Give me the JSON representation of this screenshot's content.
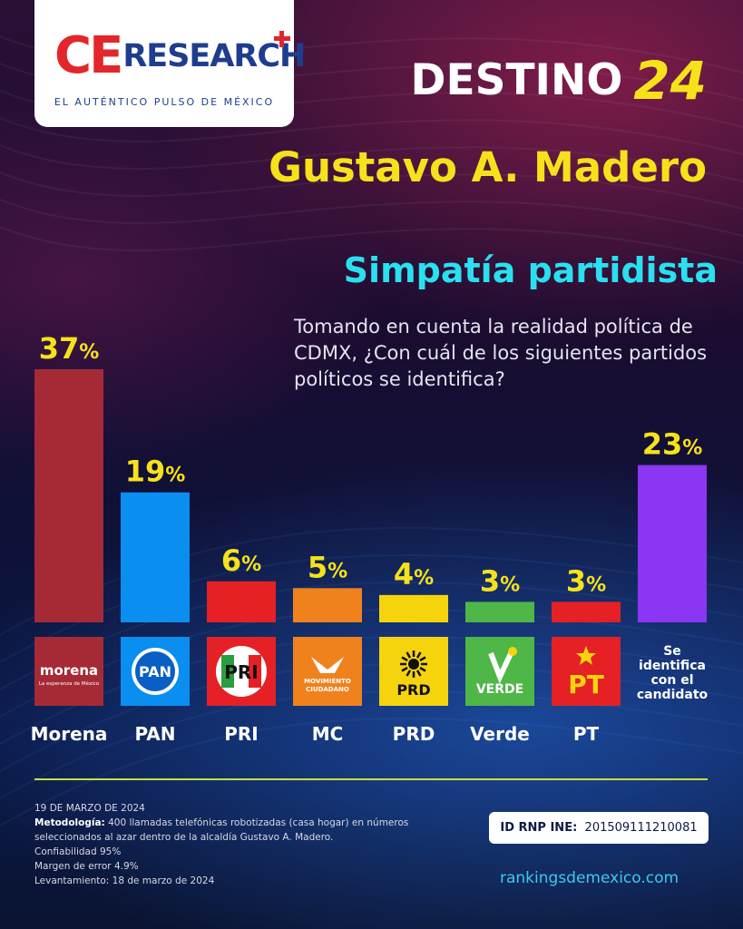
{
  "logo": {
    "brand_ce": "CE",
    "brand_research": "RESEARCH",
    "tagline": "EL AUTÉNTICO PULSO DE MÉXICO"
  },
  "header": {
    "destino_word": "DESTINO",
    "destino_number": "24",
    "city": "Gustavo A. Madero"
  },
  "chart_data": {
    "type": "bar",
    "title": "Simpatía partidista",
    "question": "Tomando en cuenta la realidad política de CDMX, ¿Con cuál de los siguientes partidos políticos se identifica?",
    "categories": [
      "Morena",
      "PAN",
      "PRI",
      "MC",
      "PRD",
      "Verde",
      "PT",
      "Se identifica con el candidato"
    ],
    "values": [
      37,
      19,
      6,
      5,
      4,
      3,
      3,
      23
    ],
    "unit": "%",
    "ylim": [
      0,
      37
    ],
    "colors": [
      "#a52a36",
      "#0a8ef0",
      "#e52125",
      "#f0821e",
      "#f5d40e",
      "#4fb648",
      "#e52125",
      "#8a36f2"
    ],
    "logo_texts": {
      "morena_name": "morena",
      "morena_slogan": "La esperanza de México",
      "pan": "PAN",
      "pri": "PRI",
      "mc_line1": "MOVIMIENTO",
      "mc_line2": "CIUDADANO",
      "prd": "PRD",
      "verde": "VERDE",
      "pt": "PT"
    },
    "candidate_lines": [
      "Se",
      "identifica",
      "con el",
      "candidato"
    ],
    "axis_labels": [
      "Morena",
      "PAN",
      "PRI",
      "MC",
      "PRD",
      "Verde",
      "PT"
    ]
  },
  "footer": {
    "date": "19 DE MARZO DE 2024",
    "methodology_label": "Metodología:",
    "methodology_text": " 400 llamadas telefónicas robotizadas (casa hogar) en números seleccionados al azar dentro de la alcaldía Gustavo A. Madero.",
    "confidence": "Confiabilidad 95%",
    "margin": "Margen de error 4.9%",
    "fieldwork": "Levantamiento: 18 de marzo de 2024",
    "rnp_label": "ID RNP INE:",
    "rnp_value": "201509111210081",
    "website": "rankingsdemexico.com"
  }
}
